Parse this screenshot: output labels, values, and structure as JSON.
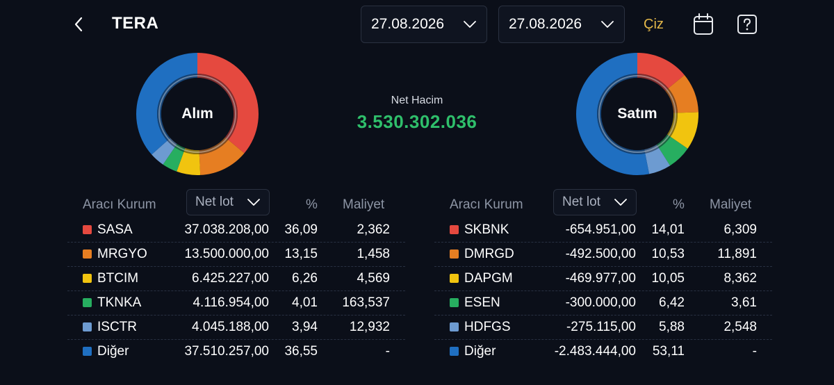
{
  "header": {
    "title": "TERA",
    "start_date": "27.08.2026",
    "end_date": "27.08.2026",
    "draw_label": "Çiz"
  },
  "net_volume": {
    "label": "Net Hacim",
    "value": "3.530.302.036",
    "color": "#2fbf6b"
  },
  "colors": {
    "red": "#e5493f",
    "orange": "#e67e22",
    "yellow": "#f1c40f",
    "green": "#27ae60",
    "lightblue": "#6d9bd1",
    "blue": "#1f6fc1"
  },
  "buy": {
    "donut_label": "Alım",
    "columns": {
      "broker": "Aracı Kurum",
      "select_value": "Net lot",
      "pct": "%",
      "cost": "Maliyet"
    },
    "rows": [
      {
        "code": "SASA",
        "lot": "37.038.208,00",
        "pct": "36,09",
        "cost": "2,362",
        "share": 36.09,
        "color": "#e5493f"
      },
      {
        "code": "MRGYO",
        "lot": "13.500.000,00",
        "pct": "13,15",
        "cost": "1,458",
        "share": 13.15,
        "color": "#e67e22"
      },
      {
        "code": "BTCIM",
        "lot": "6.425.227,00",
        "pct": "6,26",
        "cost": "4,569",
        "share": 6.26,
        "color": "#f1c40f"
      },
      {
        "code": "TKNKA",
        "lot": "4.116.954,00",
        "pct": "4,01",
        "cost": "163,537",
        "share": 4.01,
        "color": "#27ae60"
      },
      {
        "code": "ISCTR",
        "lot": "4.045.188,00",
        "pct": "3,94",
        "cost": "12,932",
        "share": 3.94,
        "color": "#6d9bd1"
      },
      {
        "code": "Diğer",
        "lot": "37.510.257,00",
        "pct": "36,55",
        "cost": "-",
        "share": 36.55,
        "color": "#1f6fc1"
      }
    ]
  },
  "sell": {
    "donut_label": "Satım",
    "columns": {
      "broker": "Aracı Kurum",
      "select_value": "Net lot",
      "pct": "%",
      "cost": "Maliyet"
    },
    "rows": [
      {
        "code": "SKBNK",
        "lot": "-654.951,00",
        "pct": "14,01",
        "cost": "6,309",
        "share": 14.01,
        "color": "#e5493f"
      },
      {
        "code": "DMRGD",
        "lot": "-492.500,00",
        "pct": "10,53",
        "cost": "11,891",
        "share": 10.53,
        "color": "#e67e22"
      },
      {
        "code": "DAPGM",
        "lot": "-469.977,00",
        "pct": "10,05",
        "cost": "8,362",
        "share": 10.05,
        "color": "#f1c40f"
      },
      {
        "code": "ESEN",
        "lot": "-300.000,00",
        "pct": "6,42",
        "cost": "3,61",
        "share": 6.42,
        "color": "#27ae60"
      },
      {
        "code": "HDFGS",
        "lot": "-275.115,00",
        "pct": "5,88",
        "cost": "2,548",
        "share": 5.88,
        "color": "#6d9bd1"
      },
      {
        "code": "Diğer",
        "lot": "-2.483.444,00",
        "pct": "53,11",
        "cost": "-",
        "share": 53.11,
        "color": "#1f6fc1"
      }
    ]
  },
  "icons": {
    "back": "chevron-left-icon",
    "calendar": "calendar-icon",
    "help": "help-icon",
    "dropdown": "chevron-down-icon"
  }
}
